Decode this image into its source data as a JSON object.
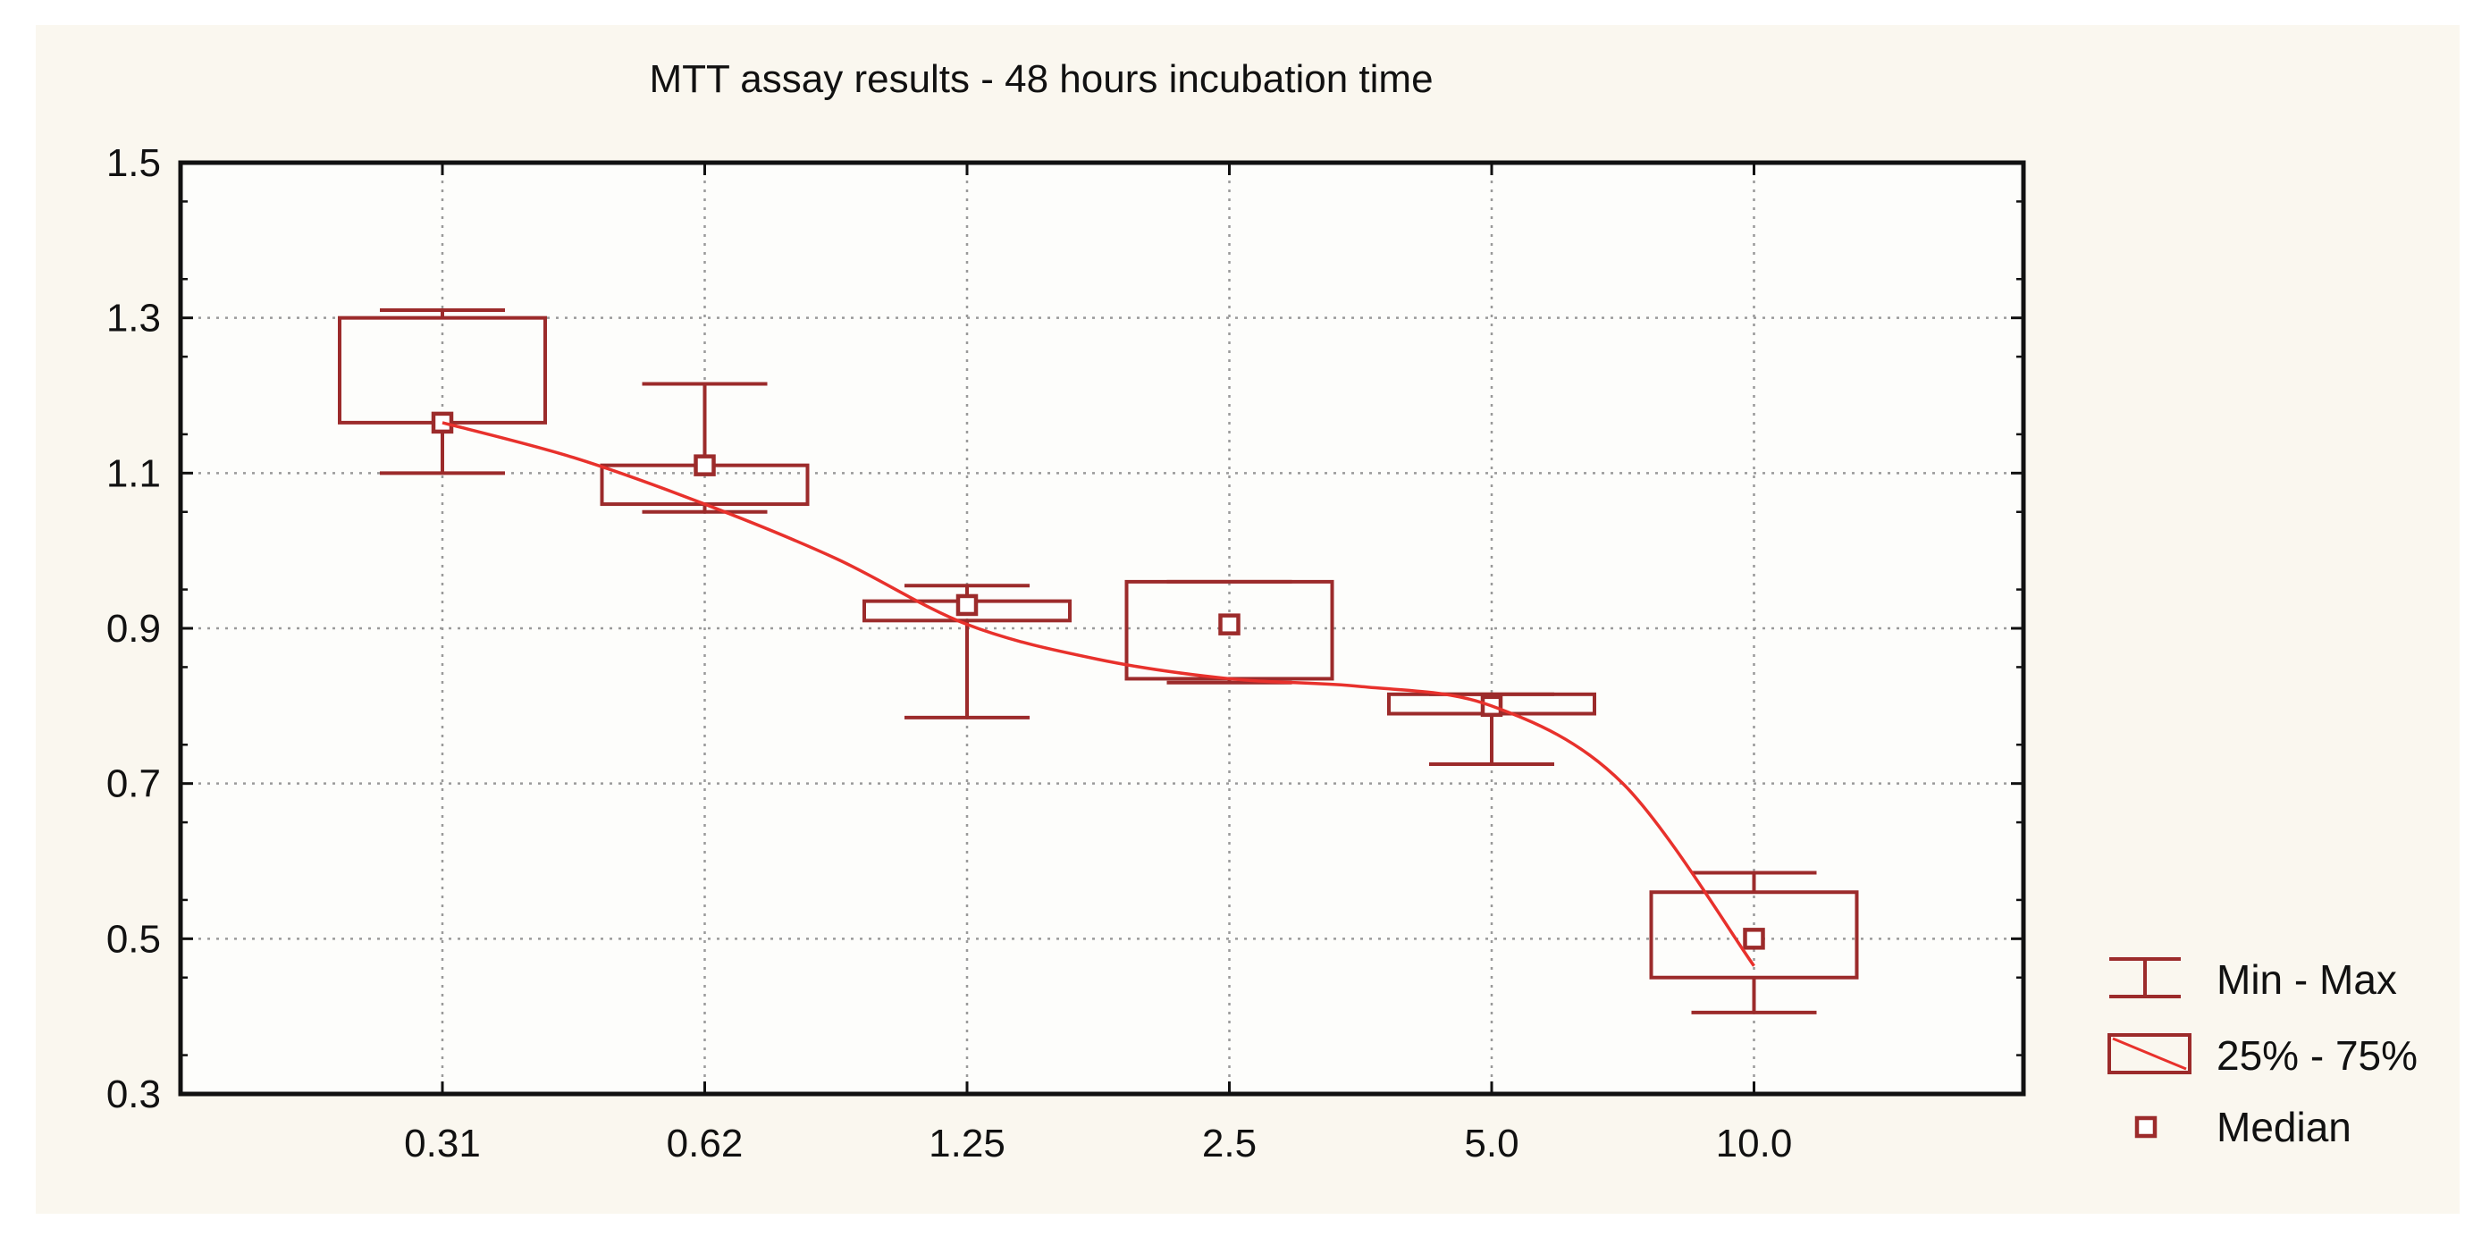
{
  "chart_data": {
    "type": "box",
    "title": "MTT assay results - 48 hours incubation time",
    "xlabel": "",
    "ylabel": "",
    "categories": [
      "0.31",
      "0.62",
      "1.25",
      "2.5",
      "5.0",
      "10.0"
    ],
    "ylim": [
      0.3,
      1.5
    ],
    "yticks": [
      "0.3",
      "0.5",
      "0.7",
      "0.9",
      "1.1",
      "1.3",
      "1.5"
    ],
    "grid": true,
    "legend_position": "right",
    "boxes": [
      {
        "category": "0.31",
        "min": 1.1,
        "q1": 1.165,
        "median": 1.165,
        "q3": 1.3,
        "max": 1.31
      },
      {
        "category": "0.62",
        "min": 1.05,
        "q1": 1.06,
        "median": 1.11,
        "q3": 1.11,
        "max": 1.215
      },
      {
        "category": "1.25",
        "min": 0.785,
        "q1": 0.91,
        "median": 0.93,
        "q3": 0.935,
        "max": 0.955
      },
      {
        "category": "2.5",
        "min": 0.83,
        "q1": 0.835,
        "median": 0.905,
        "q3": 0.96,
        "max": 0.96
      },
      {
        "category": "5.0",
        "min": 0.725,
        "q1": 0.79,
        "median": 0.8,
        "q3": 0.815,
        "max": 0.815
      },
      {
        "category": "10.0",
        "min": 0.405,
        "q1": 0.45,
        "median": 0.5,
        "q3": 0.56,
        "max": 0.585
      }
    ],
    "trend_line": {
      "x_index": [
        0,
        0.5,
        1,
        1.5,
        2,
        2.5,
        3,
        3.5,
        4,
        4.5,
        5
      ],
      "y": [
        1.165,
        1.12,
        1.06,
        0.99,
        0.905,
        0.86,
        0.835,
        0.825,
        0.8,
        0.7,
        0.465
      ]
    },
    "legend": [
      {
        "symbol": "whisker",
        "label": "Min - Max"
      },
      {
        "symbol": "box",
        "label": "25% - 75%"
      },
      {
        "symbol": "square",
        "label": "Median"
      }
    ],
    "colors": {
      "box": "#9c2b2b",
      "trend": "#e8312c",
      "grid": "#9a9a9a",
      "axis": "#111111",
      "plot_bg": "#fdfdfb",
      "figure_bg": "#faf7ef"
    }
  }
}
